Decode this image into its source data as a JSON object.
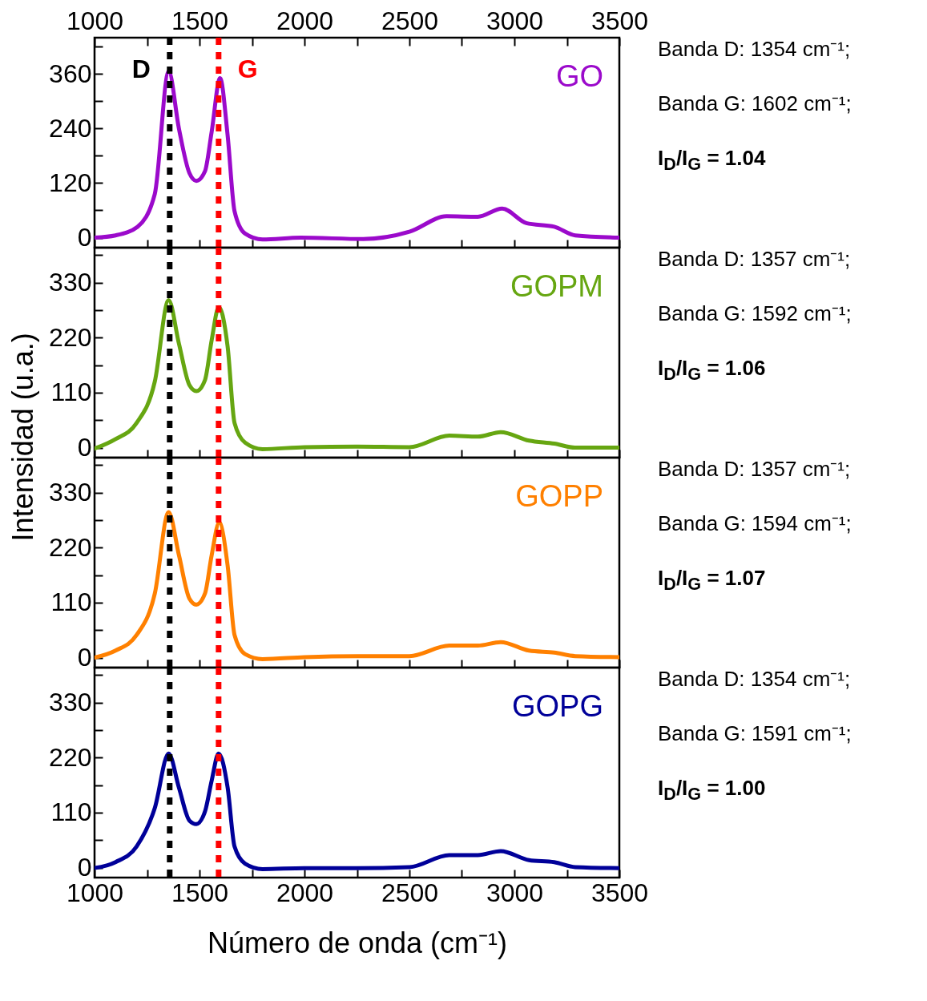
{
  "chart_data": [
    {
      "type": "line",
      "xlim": [
        1000,
        3500
      ],
      "xticks": [
        1000,
        {
          "value": 1250,
          "label": null
        },
        1500,
        {
          "value": 1750,
          "label": null
        },
        2000,
        {
          "value": 2250,
          "label": null
        },
        2500,
        {
          "value": 2750,
          "label": null
        },
        3000,
        {
          "value": 3250,
          "label": null
        },
        3500
      ],
      "x2lim": [
        1000,
        3500
      ],
      "x2ticks": [
        1000,
        {
          "value": 1250,
          "label": null
        },
        1500,
        {
          "value": 1750,
          "label": null
        },
        2000,
        {
          "value": 2250,
          "label": null
        },
        2500,
        {
          "value": 2750,
          "label": null
        },
        3000,
        {
          "value": 3250,
          "label": null
        },
        3500
      ],
      "ylim": [
        -22,
        440
      ],
      "yticks": [
        0,
        {
          "value": 60,
          "label": null
        },
        120,
        {
          "value": 180,
          "label": null
        },
        240,
        {
          "value": 300,
          "label": null
        },
        360,
        {
          "value": 420,
          "label": null
        }
      ],
      "tick_labels": "y",
      "x": [
        1000,
        1100,
        1205,
        1287,
        1353,
        1402,
        1452,
        1485,
        1526,
        1558,
        1598,
        1634,
        1667,
        1717,
        1800,
        1982,
        2280,
        2500,
        2677,
        2826,
        2942,
        3057,
        3190,
        3290,
        3500
      ],
      "series": [
        {
          "name": "GO",
          "color": "#9b0acb",
          "values": [
            0,
            5,
            24,
            96,
            366,
            240,
            142,
            125,
            146,
            233,
            351,
            225,
            58,
            9,
            -4,
            0,
            -3,
            13,
            47,
            46,
            64,
            32,
            24,
            5,
            0
          ]
        }
      ],
      "ref_lines": [
        {
          "axis": "x",
          "value": 1358,
          "label": "D",
          "color": "#000000",
          "line_style": "dotted"
        },
        {
          "axis": "x",
          "value": 1591,
          "label": "G",
          "color": "#ff0000",
          "line_style": "dotted"
        }
      ],
      "annotations": [
        "Banda D: 1354 cm⁻¹;",
        "Banda G: 1602 cm⁻¹;",
        "I$_{D}$/I$_{G}$ = 1.04"
      ]
    },
    {
      "type": "line",
      "xlim": [
        1000,
        3500
      ],
      "xticks": [
        1000,
        {
          "value": 1250,
          "label": null
        },
        1500,
        {
          "value": 1750,
          "label": null
        },
        2000,
        {
          "value": 2250,
          "label": null
        },
        2500,
        {
          "value": 2750,
          "label": null
        },
        3000,
        {
          "value": 3250,
          "label": null
        },
        3500
      ],
      "ylim": [
        -20,
        400
      ],
      "yticks": [
        0,
        {
          "value": 55,
          "label": null
        },
        110,
        {
          "value": 165,
          "label": null
        },
        220,
        {
          "value": 275,
          "label": null
        },
        330,
        {
          "value": 385,
          "label": null
        }
      ],
      "tick_labels": "y",
      "ylabel": "Intensidad (u.a.)",
      "x": [
        1000,
        1100,
        1200,
        1287,
        1353,
        1402,
        1452,
        1485,
        1526,
        1558,
        1592,
        1634,
        1667,
        1717,
        1800,
        2000,
        2250,
        2500,
        2690,
        2826,
        2935,
        3070,
        3190,
        3290,
        3500
      ],
      "series": [
        {
          "name": "GOPM",
          "color": "#66a611",
          "values": [
            -2,
            17,
            49,
            132,
            295,
            208,
            125,
            113,
            135,
            215,
            281,
            202,
            49,
            10,
            -3,
            1,
            2,
            1,
            24,
            22,
            31,
            14,
            8,
            0,
            0
          ]
        }
      ],
      "ref_lines": [
        {
          "axis": "x",
          "value": 1358,
          "color": "#000000",
          "line_style": "dotted"
        },
        {
          "axis": "x",
          "value": 1591,
          "color": "#ff0000",
          "line_style": "dotted"
        }
      ],
      "annotations": [
        "Banda D: 1357 cm⁻¹;",
        "Banda G: 1592 cm⁻¹;",
        "I$_{D}$/I$_{G}$ = 1.06"
      ]
    },
    {
      "type": "line",
      "xlim": [
        1000,
        3500
      ],
      "xticks": [
        1000,
        {
          "value": 1250,
          "label": null
        },
        1500,
        {
          "value": 1750,
          "label": null
        },
        2000,
        {
          "value": 2250,
          "label": null
        },
        2500,
        {
          "value": 2750,
          "label": null
        },
        3000,
        {
          "value": 3250,
          "label": null
        },
        3500
      ],
      "ylim": [
        -20,
        400
      ],
      "yticks": [
        0,
        {
          "value": 55,
          "label": null
        },
        110,
        {
          "value": 165,
          "label": null
        },
        220,
        {
          "value": 275,
          "label": null
        },
        330,
        {
          "value": 385,
          "label": null
        }
      ],
      "tick_labels": "y",
      "x": [
        1000,
        1100,
        1200,
        1287,
        1353,
        1402,
        1452,
        1485,
        1526,
        1558,
        1594,
        1634,
        1667,
        1717,
        1800,
        2000,
        2250,
        2500,
        2690,
        2826,
        2935,
        3070,
        3190,
        3290,
        3500
      ],
      "series": [
        {
          "name": "GOPP",
          "color": "#ff8000",
          "values": [
            0,
            14,
            45,
            128,
            291,
            205,
            118,
            106,
            128,
            205,
            270,
            184,
            45,
            7,
            -3,
            1,
            3,
            3,
            24,
            24,
            31,
            14,
            10,
            3,
            1
          ]
        }
      ],
      "ref_lines": [
        {
          "axis": "x",
          "value": 1358,
          "color": "#000000",
          "line_style": "dotted"
        },
        {
          "axis": "x",
          "value": 1591,
          "color": "#ff0000",
          "line_style": "dotted"
        }
      ],
      "annotations": [
        "Banda D: 1357 cm⁻¹;",
        "Banda G: 1594 cm⁻¹;",
        "I$_{D}$/I$_{G}$ = 1.07"
      ]
    },
    {
      "type": "line",
      "xlim": [
        1000,
        3500
      ],
      "xticks": [
        1000,
        {
          "value": 1250,
          "label": null
        },
        1500,
        {
          "value": 1750,
          "label": null
        },
        2000,
        {
          "value": 2250,
          "label": null
        },
        2500,
        {
          "value": 2750,
          "label": null
        },
        3000,
        {
          "value": 3250,
          "label": null
        },
        3500
      ],
      "ylim": [
        -20,
        400
      ],
      "yticks": [
        0,
        {
          "value": 55,
          "label": null
        },
        110,
        {
          "value": 165,
          "label": null
        },
        220,
        {
          "value": 275,
          "label": null
        },
        330,
        {
          "value": 385,
          "label": null
        }
      ],
      "xlabel": "Número de onda (cm⁻¹)",
      "x": [
        1000,
        1100,
        1200,
        1287,
        1353,
        1402,
        1452,
        1485,
        1526,
        1558,
        1591,
        1634,
        1667,
        1717,
        1800,
        2000,
        2250,
        2500,
        2690,
        2826,
        2935,
        3070,
        3190,
        3290,
        3500
      ],
      "series": [
        {
          "name": "GOPG",
          "color": "#000099",
          "values": [
            -1,
            11,
            42,
            119,
            228,
            160,
            94,
            87,
            112,
            174,
            228,
            160,
            42,
            8,
            -3,
            -1,
            -1,
            1,
            25,
            25,
            33,
            15,
            11,
            1,
            -1
          ]
        }
      ],
      "ref_lines": [
        {
          "axis": "x",
          "value": 1358,
          "color": "#000000",
          "line_style": "dotted"
        },
        {
          "axis": "x",
          "value": 1591,
          "color": "#ff0000",
          "line_style": "dotted"
        }
      ],
      "annotations": [
        "Banda D: 1354 cm⁻¹;",
        "Banda G: 1591 cm⁻¹;",
        "I$_{D}$/I$_{G}$ = 1.00"
      ]
    }
  ]
}
